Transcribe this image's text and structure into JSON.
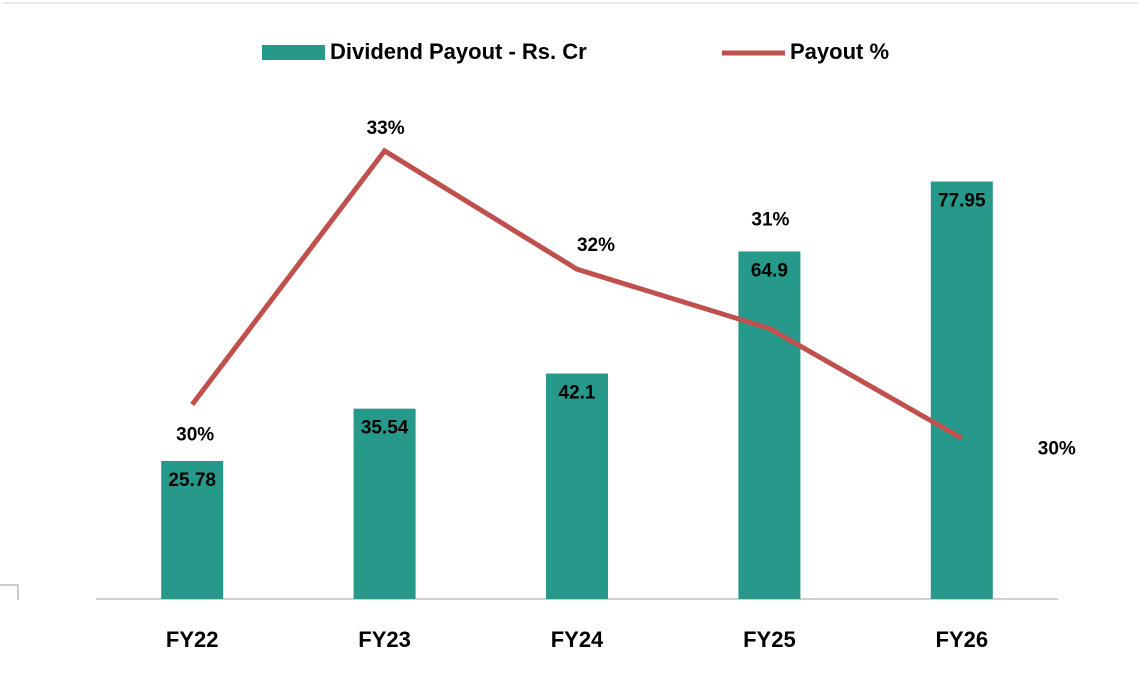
{
  "chart_data": {
    "type": "bar-line",
    "categories": [
      "FY22",
      "FY23",
      "FY24",
      "FY25",
      "FY26"
    ],
    "series": [
      {
        "name": "Dividend Payout - Rs. Cr",
        "type": "bar",
        "color": "#26998a",
        "values": [
          25.78,
          35.54,
          42.1,
          64.9,
          77.95
        ]
      },
      {
        "name": "Payout %",
        "type": "line",
        "axis": "y2",
        "color": "#c0504d",
        "values": [
          30.4,
          33.4,
          32.0,
          31.3,
          30.0
        ],
        "value_labels": [
          "30%",
          "33%",
          "32%",
          "31%",
          "30%"
        ]
      }
    ],
    "ylim": [
      0,
      90
    ],
    "y2lim": [
      28.1,
      33.8
    ],
    "legend": "top"
  }
}
